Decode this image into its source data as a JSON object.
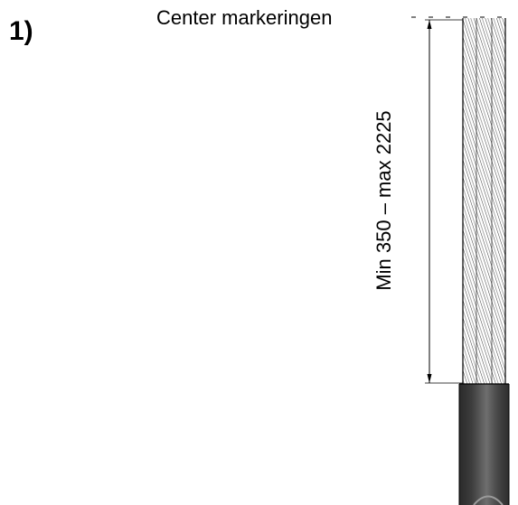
{
  "step_number": "1)",
  "center_marking_label": "Center markeringen",
  "dimension_label": "Min 350 – max 2225",
  "colors": {
    "wire": "#333333",
    "jacket": "#3b3b3b",
    "jacket_highlight": "#7a7a7a",
    "line": "#000000"
  }
}
